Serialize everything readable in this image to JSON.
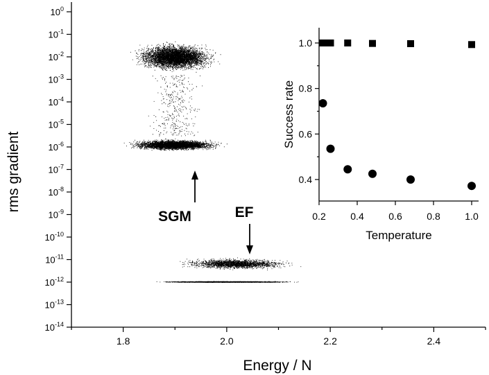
{
  "chart_data": [
    {
      "type": "scatter",
      "xlabel": "Energy / N",
      "ylabel": "rms gradient",
      "xlim": [
        1.7,
        2.5
      ],
      "ylim": [
        1e-14,
        1
      ],
      "yscale": "log",
      "xticks": [
        "1.8",
        "2.0",
        "2.2",
        "2.4"
      ],
      "yticks": [
        {
          "base": "10",
          "exp": "0"
        },
        {
          "base": "10",
          "exp": "-1"
        },
        {
          "base": "10",
          "exp": "-2"
        },
        {
          "base": "10",
          "exp": "-3"
        },
        {
          "base": "10",
          "exp": "-4"
        },
        {
          "base": "10",
          "exp": "-5"
        },
        {
          "base": "10",
          "exp": "-6"
        },
        {
          "base": "10",
          "exp": "-7"
        },
        {
          "base": "10",
          "exp": "-8"
        },
        {
          "base": "10",
          "exp": "-9"
        },
        {
          "base": "10",
          "exp": "-10"
        },
        {
          "base": "10",
          "exp": "-11"
        },
        {
          "base": "10",
          "exp": "-12"
        },
        {
          "base": "10",
          "exp": "-13"
        },
        {
          "base": "10",
          "exp": "-14"
        }
      ],
      "grid": false,
      "clusters": [
        {
          "group": "SGM",
          "x_center": 1.9,
          "x_spread": 0.07,
          "log10_y_center": -2.0,
          "log10_y_spread": 0.5,
          "count": 6000
        },
        {
          "group": "SGM",
          "x_center": 1.9,
          "x_spread": 0.08,
          "log10_y_center": -5.9,
          "log10_y_spread": 0.2,
          "count": 4500
        },
        {
          "group": "SGM",
          "x_center": 1.9,
          "x_spread": 0.05,
          "log10_y_range": [
            -5.5,
            -2.8
          ],
          "count": 350
        },
        {
          "group": "EF",
          "x_center": 2.02,
          "x_spread": 0.1,
          "log10_y_center": -11.18,
          "log10_y_spread": 0.2,
          "count": 2200
        },
        {
          "group": "EF",
          "x_center": 2.0,
          "x_spread": 0.11,
          "log10_y_center": -11.98,
          "log10_y_spread": 0.02,
          "count": 9000
        }
      ],
      "annotations": [
        {
          "text": "SGM",
          "arrow": "up",
          "x": 1.9,
          "points_to_log10_y": -6.8
        },
        {
          "text": "EF",
          "arrow": "down",
          "x": 2.05,
          "points_to_log10_y": -10.9
        }
      ]
    },
    {
      "type": "scatter",
      "inset": true,
      "xlabel": "Temperature",
      "ylabel": "Success rate",
      "xlim": [
        0.2,
        1.0
      ],
      "ylim": [
        0.3,
        1.05
      ],
      "xticks": [
        "0.2",
        "0.4",
        "0.6",
        "0.8",
        "1.0"
      ],
      "yticks": [
        "0.4",
        "0.6",
        "0.8",
        "1.0"
      ],
      "grid": false,
      "series": [
        {
          "marker": "square",
          "x": [
            0.22,
            0.24,
            0.26,
            0.35,
            0.48,
            0.68,
            1.0
          ],
          "y": [
            1.0,
            1.0,
            1.0,
            1.0,
            0.998,
            0.997,
            0.993
          ]
        },
        {
          "marker": "circle",
          "x": [
            0.22,
            0.26,
            0.35,
            0.48,
            0.68,
            1.0
          ],
          "y": [
            0.735,
            0.535,
            0.445,
            0.425,
            0.4,
            0.372
          ]
        }
      ]
    }
  ]
}
